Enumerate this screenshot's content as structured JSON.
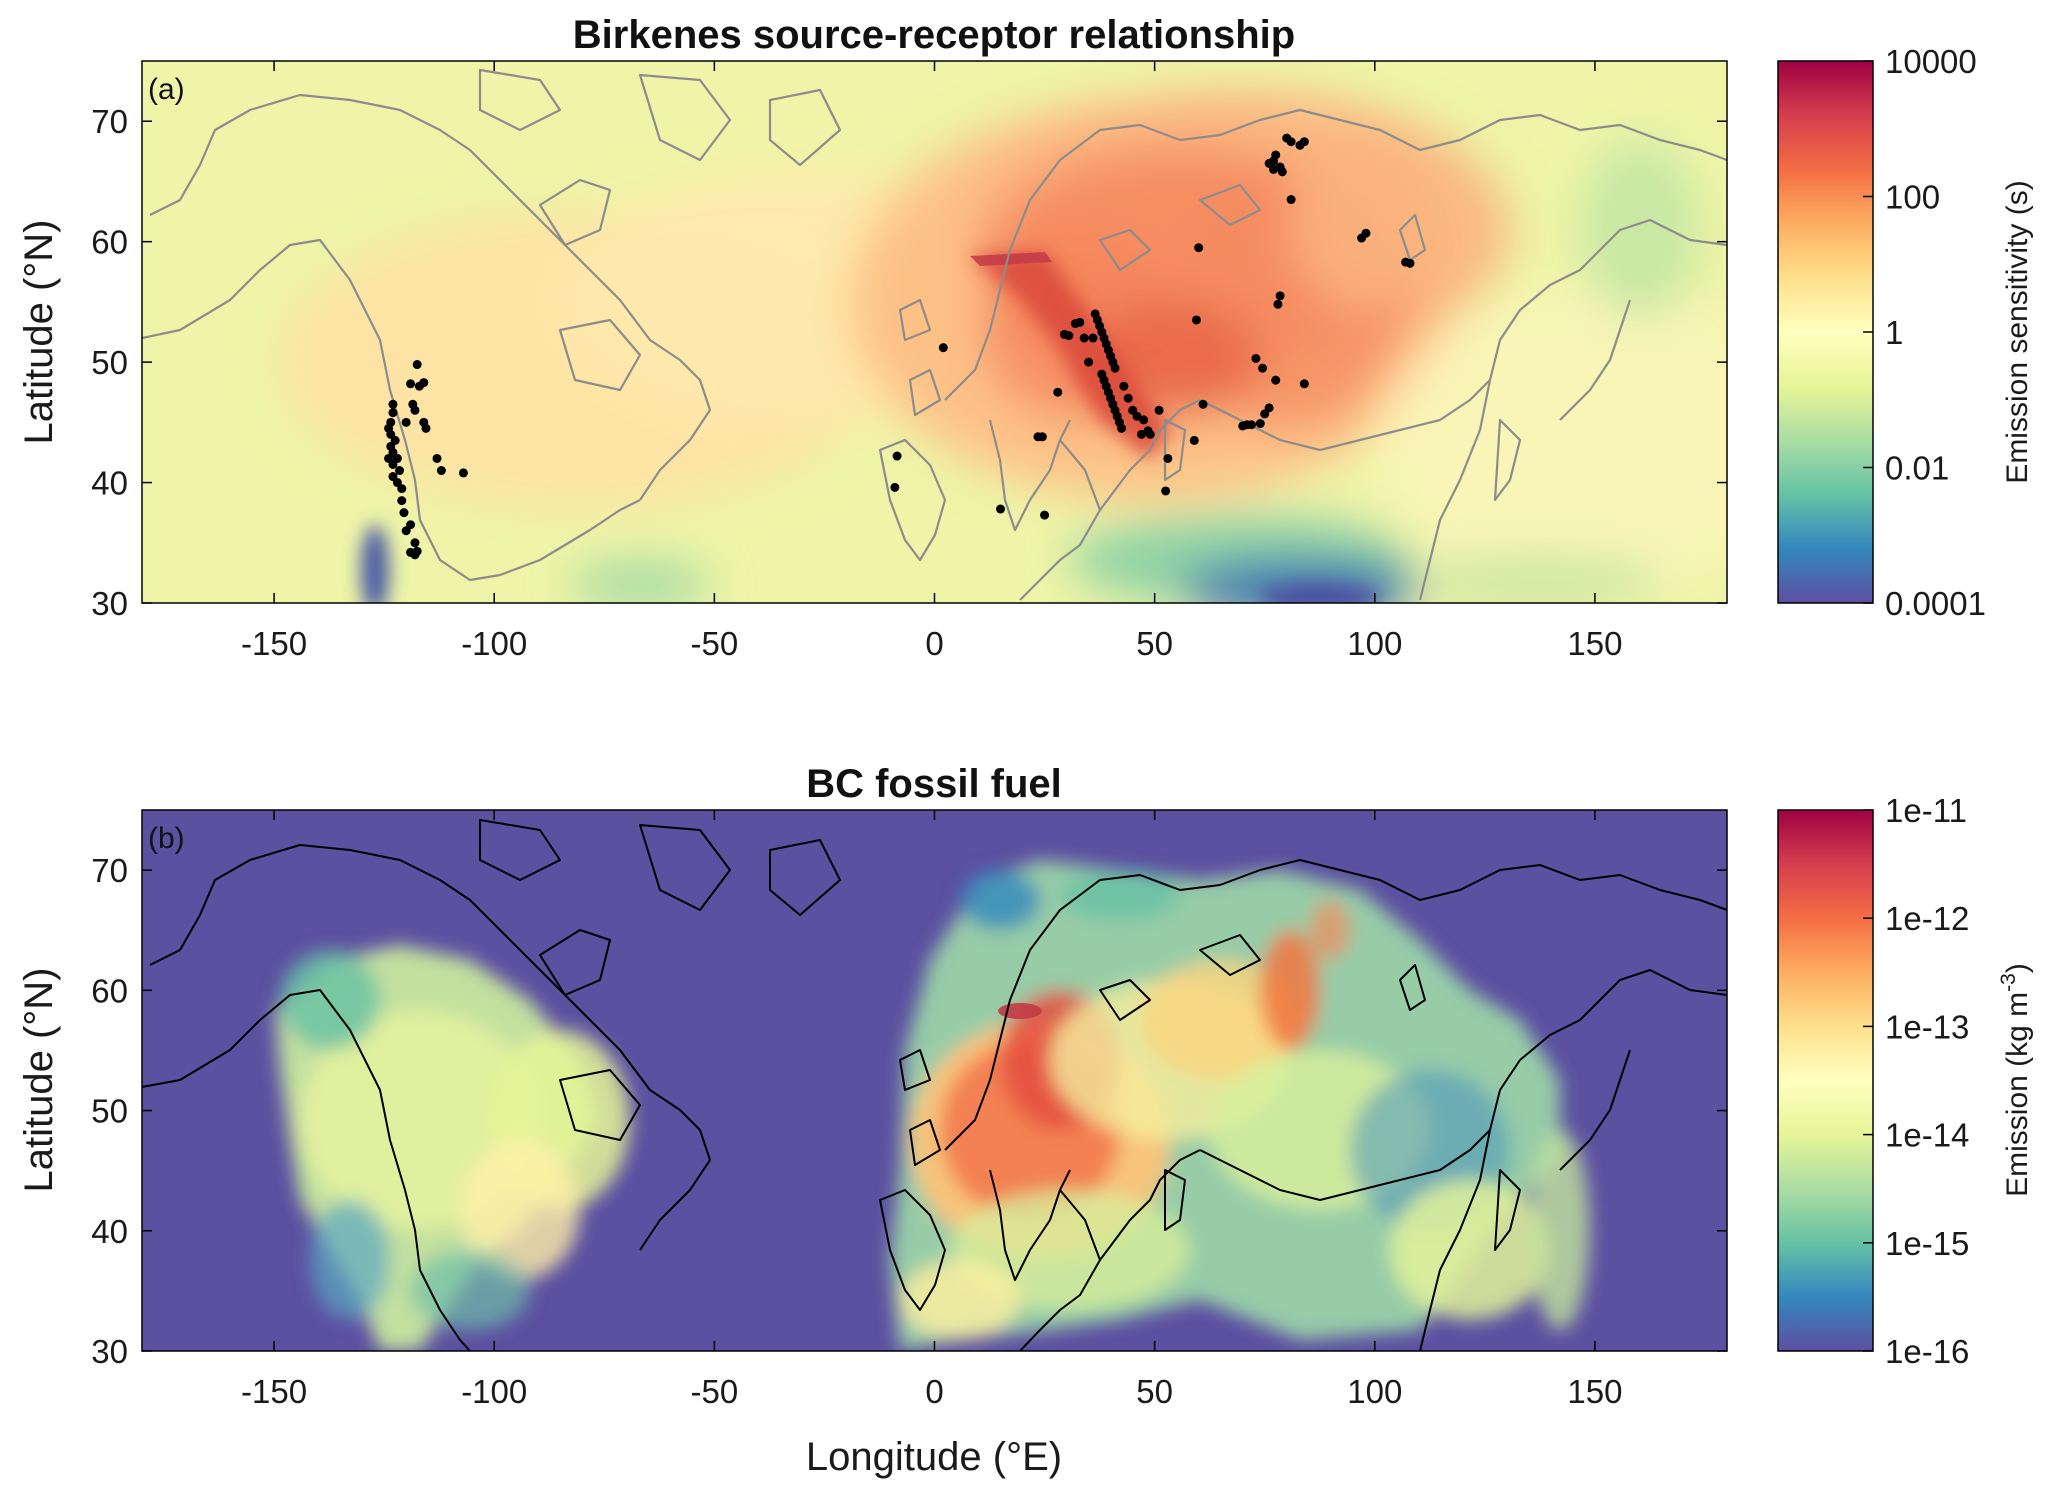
{
  "chart_data": [
    {
      "type": "heatmap",
      "panel_label": "(a)",
      "title": "Birkenes source-receptor relationship",
      "xlabel": "",
      "ylabel": "Latitude (°N)",
      "xlim": [
        -180,
        180
      ],
      "ylim": [
        30,
        75
      ],
      "xticks": [
        -150,
        -100,
        -50,
        0,
        50,
        100,
        150
      ],
      "yticks": [
        30,
        40,
        50,
        60,
        70
      ],
      "colorbar": {
        "label": "Emission sensitivity (s)",
        "scale": "log",
        "range": [
          0.0001,
          10000
        ],
        "ticks": [
          "10000",
          "100",
          "1",
          "0.01",
          "0.0001"
        ]
      },
      "coastline_color": "#8c8c8c",
      "marker_color": "#000000",
      "markers_lonlat": [
        [
          -123,
          46.5
        ],
        [
          -123,
          45.8
        ],
        [
          -123.5,
          45
        ],
        [
          -124,
          44.5
        ],
        [
          -123.5,
          44
        ],
        [
          -122.5,
          43.5
        ],
        [
          -123.5,
          43
        ],
        [
          -123,
          42.5
        ],
        [
          -124,
          42
        ],
        [
          -122,
          42
        ],
        [
          -123,
          41.5
        ],
        [
          -121.5,
          41
        ],
        [
          -123,
          40.5
        ],
        [
          -122,
          40
        ],
        [
          -121,
          39.5
        ],
        [
          -121,
          38.5
        ],
        [
          -120.5,
          37.5
        ],
        [
          -119,
          36.5
        ],
        [
          -120,
          36
        ],
        [
          -118,
          35
        ],
        [
          -117.5,
          34.3
        ],
        [
          -119,
          34.2
        ],
        [
          -118,
          34
        ],
        [
          -119,
          48.2
        ],
        [
          -117.5,
          49.8
        ],
        [
          -117,
          48
        ],
        [
          -116,
          48.3
        ],
        [
          -118.5,
          46.5
        ],
        [
          -116,
          45
        ],
        [
          -115.5,
          44.5
        ],
        [
          -113,
          42
        ],
        [
          -112,
          41
        ],
        [
          -107,
          40.8
        ],
        [
          -118,
          46
        ],
        [
          -120,
          45
        ],
        [
          2,
          51.2
        ],
        [
          -8.5,
          42.2
        ],
        [
          -9,
          39.6
        ],
        [
          15,
          37.8
        ],
        [
          23.5,
          43.8
        ],
        [
          24.5,
          43.8
        ],
        [
          25,
          37.3
        ],
        [
          28,
          47.5
        ],
        [
          29.5,
          52.3
        ],
        [
          30.5,
          52.2
        ],
        [
          32,
          53.2
        ],
        [
          33,
          53.3
        ],
        [
          34,
          52
        ],
        [
          35,
          50
        ],
        [
          36,
          52
        ],
        [
          36.5,
          54
        ],
        [
          37,
          53.5
        ],
        [
          37.5,
          53
        ],
        [
          38,
          52.5
        ],
        [
          38.5,
          52
        ],
        [
          39,
          51.5
        ],
        [
          39.5,
          51
        ],
        [
          40,
          50.5
        ],
        [
          40.5,
          50
        ],
        [
          41,
          49.5
        ],
        [
          38,
          49
        ],
        [
          38.5,
          48.5
        ],
        [
          39,
          48
        ],
        [
          39.5,
          47.5
        ],
        [
          40,
          47
        ],
        [
          40.5,
          46.5
        ],
        [
          41,
          46
        ],
        [
          41.5,
          45.5
        ],
        [
          42,
          45
        ],
        [
          42.5,
          44.5
        ],
        [
          43,
          48
        ],
        [
          44,
          47
        ],
        [
          45,
          46
        ],
        [
          46,
          45.5
        ],
        [
          47.5,
          45.2
        ],
        [
          48.5,
          44.3
        ],
        [
          47,
          44
        ],
        [
          49,
          44
        ],
        [
          51,
          46
        ],
        [
          53,
          42
        ],
        [
          52.5,
          39.3
        ],
        [
          59.5,
          53.5
        ],
        [
          60,
          59.5
        ],
        [
          59,
          43.5
        ],
        [
          61,
          46.5
        ],
        [
          70,
          44.7
        ],
        [
          71,
          44.8
        ],
        [
          72,
          44.8
        ],
        [
          74,
          44.9
        ],
        [
          73,
          50.3
        ],
        [
          74.5,
          49.5
        ],
        [
          75,
          45.7
        ],
        [
          76,
          46.2
        ],
        [
          76,
          66.5
        ],
        [
          77,
          66.7
        ],
        [
          77.5,
          67.2
        ],
        [
          78,
          54.8
        ],
        [
          78.5,
          55.5
        ],
        [
          77.5,
          48.5
        ],
        [
          79,
          65.8
        ],
        [
          80,
          68.6
        ],
        [
          81,
          68.3
        ],
        [
          81,
          63.5
        ],
        [
          83,
          68
        ],
        [
          84,
          68.3
        ],
        [
          84,
          48.2
        ],
        [
          97,
          60.3
        ],
        [
          98,
          60.7
        ],
        [
          107,
          58.3
        ],
        [
          108,
          58.2
        ],
        [
          77,
          66
        ],
        [
          78.5,
          66.2
        ]
      ]
    },
    {
      "type": "heatmap",
      "panel_label": "(b)",
      "title": "BC fossil fuel",
      "xlabel": "Longitude (°E)",
      "ylabel": "Latitude (°N)",
      "xlim": [
        -180,
        180
      ],
      "ylim": [
        30,
        75
      ],
      "xticks": [
        -150,
        -100,
        -50,
        0,
        50,
        100,
        150
      ],
      "yticks": [
        30,
        40,
        50,
        60,
        70
      ],
      "colorbar": {
        "label": "Emission (kg m",
        "label_superscript": "-3",
        "label_tail": ")",
        "scale": "log",
        "range": [
          1e-16,
          1e-11
        ],
        "ticks": [
          "1e-11",
          "1e-12",
          "1e-13",
          "1e-14",
          "1e-15",
          "1e-16"
        ]
      },
      "coastline_color": "#000000",
      "background_color": "#5c50a1"
    }
  ],
  "colormap": [
    "#5e4fa2",
    "#3288bd",
    "#66c2a5",
    "#abdda4",
    "#e6f598",
    "#ffffbf",
    "#fee08b",
    "#fdae61",
    "#f46d43",
    "#d53e4f",
    "#9e0142"
  ]
}
